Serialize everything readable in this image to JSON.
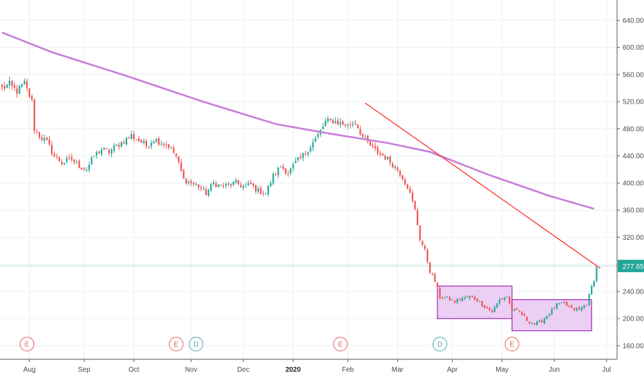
{
  "chart_data": {
    "type": "candlestick",
    "title": "",
    "xlabel": "",
    "ylabel": "",
    "ylim": [
      140,
      670
    ],
    "grid": true,
    "y_ticks": [
      160,
      200,
      240,
      280,
      320,
      360,
      400,
      440,
      480,
      520,
      560,
      600,
      640
    ],
    "y_tick_labels": [
      "160.00",
      "200.00",
      "240.00",
      "280.00",
      "320.00",
      "360.00",
      "400.00",
      "440.00",
      "480.00",
      "520.00",
      "560.00",
      "600.00",
      "640.00"
    ],
    "x_ticks": [
      {
        "label": "Aug",
        "index": 11,
        "bold": false
      },
      {
        "label": "Sep",
        "index": 33,
        "bold": false
      },
      {
        "label": "Oct",
        "index": 53,
        "bold": false
      },
      {
        "label": "Nov",
        "index": 76,
        "bold": false
      },
      {
        "label": "Dec",
        "index": 97,
        "bold": false
      },
      {
        "label": "2020",
        "index": 117,
        "bold": true
      },
      {
        "label": "Feb",
        "index": 139,
        "bold": false
      },
      {
        "label": "Mar",
        "index": 159,
        "bold": false
      },
      {
        "label": "Apr",
        "index": 181,
        "bold": false
      },
      {
        "label": "May",
        "index": 201,
        "bold": false
      },
      {
        "label": "Jun",
        "index": 222,
        "bold": false
      },
      {
        "label": "Jul",
        "index": 243,
        "bold": false
      }
    ],
    "last_price": 277.65,
    "last_price_label": "277.65",
    "colors": {
      "up": "#26a69a",
      "down": "#ef5350",
      "ma": "#c77dd9",
      "trendline": "#ff2a2a",
      "box_fill": "#e6bff0",
      "box_stroke": "#9c27b0",
      "price_line": "#26a69a",
      "grid": "#eceff2"
    },
    "anchors": [
      [
        0,
        540
      ],
      [
        3,
        545
      ],
      [
        6,
        535
      ],
      [
        9,
        547
      ],
      [
        12,
        520
      ],
      [
        13,
        480
      ],
      [
        15,
        470
      ],
      [
        18,
        460
      ],
      [
        21,
        440
      ],
      [
        24,
        430
      ],
      [
        28,
        435
      ],
      [
        31,
        425
      ],
      [
        34,
        420
      ],
      [
        37,
        440
      ],
      [
        40,
        450
      ],
      [
        43,
        446
      ],
      [
        46,
        455
      ],
      [
        49,
        462
      ],
      [
        52,
        470
      ],
      [
        55,
        463
      ],
      [
        58,
        455
      ],
      [
        61,
        465
      ],
      [
        64,
        460
      ],
      [
        67,
        455
      ],
      [
        70,
        440
      ],
      [
        73,
        405
      ],
      [
        76,
        400
      ],
      [
        79,
        395
      ],
      [
        82,
        385
      ],
      [
        85,
        400
      ],
      [
        88,
        395
      ],
      [
        91,
        397
      ],
      [
        94,
        400
      ],
      [
        97,
        395
      ],
      [
        100,
        398
      ],
      [
        103,
        388
      ],
      [
        106,
        385
      ],
      [
        109,
        410
      ],
      [
        112,
        425
      ],
      [
        115,
        415
      ],
      [
        118,
        430
      ],
      [
        121,
        440
      ],
      [
        124,
        455
      ],
      [
        127,
        470
      ],
      [
        130,
        490
      ],
      [
        133,
        492
      ],
      [
        136,
        488
      ],
      [
        139,
        485
      ],
      [
        142,
        490
      ],
      [
        145,
        468
      ],
      [
        148,
        455
      ],
      [
        151,
        445
      ],
      [
        154,
        438
      ],
      [
        157,
        428
      ],
      [
        160,
        415
      ],
      [
        163,
        395
      ],
      [
        166,
        360
      ],
      [
        168,
        318
      ],
      [
        170,
        300
      ],
      [
        172,
        270
      ],
      [
        174,
        255
      ],
      [
        176,
        232
      ],
      [
        179,
        230
      ],
      [
        182,
        225
      ],
      [
        185,
        230
      ],
      [
        188,
        232
      ],
      [
        191,
        228
      ],
      [
        194,
        218
      ],
      [
        197,
        210
      ],
      [
        200,
        228
      ],
      [
        203,
        232
      ],
      [
        205,
        212
      ],
      [
        208,
        210
      ],
      [
        211,
        198
      ],
      [
        214,
        192
      ],
      [
        217,
        197
      ],
      [
        220,
        208
      ],
      [
        223,
        220
      ],
      [
        226,
        222
      ],
      [
        229,
        214
      ],
      [
        232,
        213
      ],
      [
        235,
        222
      ],
      [
        238,
        258
      ],
      [
        239,
        275
      ]
    ],
    "moving_average": [
      [
        0,
        622
      ],
      [
        20,
        593
      ],
      [
        50,
        558
      ],
      [
        80,
        521
      ],
      [
        110,
        487
      ],
      [
        130,
        474
      ],
      [
        155,
        459
      ],
      [
        172,
        446
      ],
      [
        195,
        413
      ],
      [
        220,
        381
      ],
      [
        238,
        362
      ]
    ],
    "trendline": [
      [
        146,
        518
      ],
      [
        239,
        278
      ]
    ],
    "consolidation_boxes": [
      {
        "start": 175,
        "end": 205,
        "low": 200,
        "high": 248
      },
      {
        "start": 205,
        "end": 237,
        "low": 182,
        "high": 228
      }
    ],
    "events": [
      {
        "label": "E",
        "index": 10
      },
      {
        "label": "E",
        "index": 70
      },
      {
        "label": "D",
        "index": 78
      },
      {
        "label": "E",
        "index": 136
      },
      {
        "label": "D",
        "index": 176
      },
      {
        "label": "E",
        "index": 205
      }
    ]
  }
}
